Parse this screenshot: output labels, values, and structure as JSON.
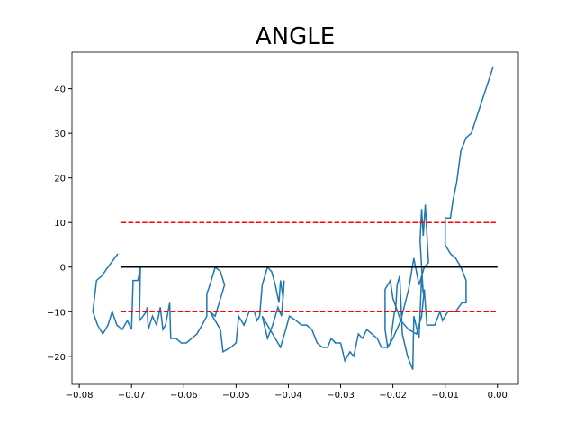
{
  "chart_data": {
    "type": "line",
    "title": "ANGLE",
    "xlim": [
      -0.0814,
      0.004
    ],
    "ylim": [
      -26.3,
      48.2
    ],
    "xticks": [
      {
        "value": -0.08,
        "label": "−0.08"
      },
      {
        "value": -0.07,
        "label": "−0.07"
      },
      {
        "value": -0.06,
        "label": "−0.06"
      },
      {
        "value": -0.05,
        "label": "−0.05"
      },
      {
        "value": -0.04,
        "label": "−0.04"
      },
      {
        "value": -0.03,
        "label": "−0.03"
      },
      {
        "value": -0.02,
        "label": "−0.02"
      },
      {
        "value": -0.01,
        "label": "−0.01"
      },
      {
        "value": 0,
        "label": "0.00"
      }
    ],
    "yticks": [
      {
        "value": -20,
        "label": "−20"
      },
      {
        "value": -10,
        "label": "−10"
      },
      0,
      10,
      20,
      30,
      40
    ],
    "series": [
      {
        "color": "#1f77b4",
        "linestyle": "solid",
        "x": [
          -0.0726,
          -0.0745,
          -0.0757,
          -0.0767,
          -0.0774,
          -0.0765,
          -0.0755,
          -0.0745,
          -0.0737,
          -0.0728,
          -0.0718,
          -0.0708,
          -0.07,
          -0.0697,
          -0.0688,
          -0.0683,
          -0.0685,
          -0.0678,
          -0.0672,
          -0.067,
          -0.0668,
          -0.066,
          -0.0652,
          -0.0645,
          -0.064,
          -0.0635,
          -0.0627,
          -0.0625,
          -0.0615,
          -0.0605,
          -0.0595,
          -0.0585,
          -0.0575,
          -0.0565,
          -0.0556,
          -0.0556,
          -0.055,
          -0.054,
          -0.053,
          -0.0522,
          -0.054,
          -0.055,
          -0.053,
          -0.0525,
          -0.051,
          -0.05,
          -0.0495,
          -0.0485,
          -0.0475,
          -0.0465,
          -0.046,
          -0.0455,
          -0.045,
          -0.044,
          -0.0432,
          -0.0425,
          -0.0418,
          -0.0415,
          -0.041,
          -0.0408,
          -0.0413,
          -0.042,
          -0.043,
          -0.044,
          -0.045,
          -0.0415,
          -0.0405,
          -0.0398,
          -0.0385,
          -0.0375,
          -0.0365,
          -0.0355,
          -0.0345,
          -0.0335,
          -0.0325,
          -0.0318,
          -0.031,
          -0.03,
          -0.0292,
          -0.0282,
          -0.0275,
          -0.0266,
          -0.0258,
          -0.025,
          -0.024,
          -0.023,
          -0.0222,
          -0.0212,
          -0.0205,
          -0.0197,
          -0.0195,
          -0.0192,
          -0.0187,
          -0.0182,
          -0.0172,
          -0.0162,
          -0.016,
          -0.015,
          -0.0145,
          -0.0142,
          -0.0148,
          -0.0145,
          -0.0142,
          -0.0138,
          -0.0132,
          -0.014,
          -0.015,
          -0.016,
          -0.017,
          -0.0185,
          -0.02,
          -0.021,
          -0.0215,
          -0.0215,
          -0.0205,
          -0.02,
          -0.0185,
          -0.017,
          -0.0155,
          -0.0145,
          -0.014,
          -0.0135,
          -0.012,
          -0.011,
          -0.0105,
          -0.0095,
          -0.008,
          -0.0068,
          -0.006,
          -0.006,
          -0.007,
          -0.008,
          -0.009,
          -0.01,
          -0.01,
          -0.009,
          -0.0085,
          -0.0078,
          -0.007,
          -0.006,
          -0.005,
          -0.0008
        ],
        "values": [
          3,
          0,
          -2,
          -3,
          -10,
          -13,
          -15,
          -13,
          -10,
          -13,
          -14,
          -12,
          -14,
          -3,
          -3,
          0,
          -12,
          -11,
          -10,
          -9,
          -14,
          -11,
          -13,
          -9,
          -14,
          -13,
          -8,
          -16,
          -16,
          -17,
          -17,
          -16,
          -15,
          -13,
          -11,
          -6,
          -4,
          0,
          -1,
          -4,
          -11,
          -10,
          -14,
          -19,
          -18,
          -17,
          -11,
          -13,
          -10,
          -10,
          -12,
          -11,
          -4,
          0,
          -1,
          -4,
          -8,
          -3,
          -7,
          -3,
          -11,
          -9,
          -13,
          -16,
          -11,
          -18,
          -14,
          -11,
          -12,
          -13,
          -13,
          -14,
          -17,
          -18,
          -18,
          -16,
          -17,
          -17,
          -21,
          -19,
          -20,
          -15,
          -16,
          -14,
          -15,
          -16,
          -18,
          -18,
          -17,
          -10,
          -10,
          -4,
          -2,
          -15,
          -20,
          -23,
          -11,
          -16,
          -2,
          -6,
          6,
          13,
          7,
          14,
          1,
          0,
          -4,
          2,
          -5,
          -12,
          -16,
          -18,
          -14,
          -5,
          -3,
          -7,
          -12,
          -14,
          -15,
          -11,
          -5,
          -13,
          -13,
          -10,
          -12,
          -10,
          -10,
          -8,
          -8,
          -3,
          0,
          2,
          3,
          5,
          11,
          11,
          15,
          19,
          26,
          29,
          30,
          45
        ]
      },
      {
        "color": "#ff0000",
        "linestyle": "dashed",
        "x": [
          -0.072,
          0
        ],
        "values": [
          10,
          10
        ]
      },
      {
        "color": "#000000",
        "linestyle": "solid",
        "x": [
          -0.072,
          0
        ],
        "values": [
          0,
          0
        ]
      },
      {
        "color": "#ff0000",
        "linestyle": "dashed",
        "x": [
          -0.072,
          0
        ],
        "values": [
          -10,
          -10
        ]
      }
    ]
  }
}
